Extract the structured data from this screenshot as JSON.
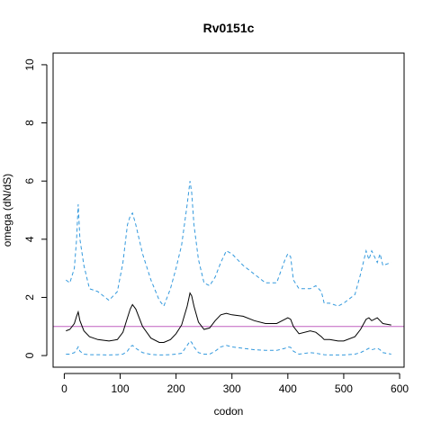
{
  "chart_data": {
    "type": "line",
    "title": "Rv0151c",
    "xlabel": "codon",
    "ylabel": "omega (dN/dS)",
    "xlim": [
      -20,
      608
    ],
    "ylim": [
      -0.4,
      10.4
    ],
    "xticks": [
      0,
      100,
      200,
      300,
      400,
      500,
      600
    ],
    "yticks": [
      0,
      2,
      4,
      6,
      8,
      10
    ],
    "xtick_labels": [
      "0",
      "100",
      "200",
      "300",
      "400",
      "500",
      "600"
    ],
    "ytick_labels": [
      "0",
      "2",
      "4",
      "6",
      "8",
      "10"
    ],
    "grid": false,
    "legend": "none",
    "reference_line": {
      "y": 1,
      "color": "#c060c0"
    },
    "series": [
      {
        "style": "dashed",
        "color": "#3399dd",
        "x": [
          3,
          10,
          18,
          22,
          25,
          28,
          35,
          45,
          60,
          80,
          95,
          105,
          113,
          118,
          122,
          128,
          140,
          155,
          170,
          178,
          190,
          200,
          210,
          220,
          225,
          228,
          232,
          240,
          250,
          260,
          270,
          280,
          290,
          300,
          320,
          340,
          360,
          380,
          395,
          400,
          405,
          410,
          420,
          440,
          450,
          460,
          465,
          475,
          490,
          500,
          520,
          530,
          540,
          545,
          550,
          560,
          565,
          570,
          585
        ],
        "values": [
          2.6,
          2.5,
          3.0,
          4.0,
          5.2,
          4.0,
          3.1,
          2.3,
          2.2,
          1.9,
          2.2,
          3.2,
          4.5,
          4.8,
          4.9,
          4.5,
          3.5,
          2.6,
          1.9,
          1.7,
          2.3,
          3.0,
          3.8,
          5.2,
          6.0,
          5.6,
          4.5,
          3.3,
          2.5,
          2.4,
          2.7,
          3.2,
          3.6,
          3.5,
          3.1,
          2.8,
          2.5,
          2.5,
          3.3,
          3.5,
          3.4,
          2.6,
          2.3,
          2.3,
          2.4,
          2.2,
          1.8,
          1.8,
          1.7,
          1.8,
          2.1,
          2.8,
          3.6,
          3.3,
          3.6,
          3.2,
          3.5,
          3.1,
          3.2
        ]
      },
      {
        "style": "solid",
        "color": "#000000",
        "x": [
          3,
          10,
          18,
          22,
          25,
          28,
          35,
          45,
          60,
          80,
          95,
          105,
          113,
          118,
          122,
          128,
          140,
          155,
          170,
          178,
          190,
          200,
          210,
          220,
          225,
          228,
          232,
          240,
          250,
          260,
          270,
          280,
          290,
          300,
          320,
          340,
          360,
          380,
          395,
          400,
          405,
          410,
          420,
          440,
          450,
          460,
          465,
          475,
          490,
          500,
          520,
          530,
          540,
          545,
          550,
          560,
          565,
          570,
          585
        ],
        "values": [
          0.85,
          0.9,
          1.1,
          1.35,
          1.5,
          1.2,
          0.85,
          0.65,
          0.55,
          0.5,
          0.55,
          0.8,
          1.3,
          1.6,
          1.75,
          1.6,
          1.0,
          0.6,
          0.45,
          0.45,
          0.55,
          0.75,
          1.05,
          1.7,
          2.15,
          2.05,
          1.7,
          1.15,
          0.9,
          0.95,
          1.2,
          1.4,
          1.45,
          1.4,
          1.35,
          1.2,
          1.1,
          1.1,
          1.25,
          1.3,
          1.25,
          1.0,
          0.75,
          0.85,
          0.8,
          0.65,
          0.55,
          0.55,
          0.5,
          0.5,
          0.65,
          0.9,
          1.25,
          1.3,
          1.2,
          1.3,
          1.2,
          1.1,
          1.05
        ]
      },
      {
        "style": "dashed",
        "color": "#3399dd",
        "x": [
          3,
          10,
          18,
          22,
          25,
          28,
          35,
          45,
          60,
          80,
          95,
          105,
          113,
          118,
          122,
          128,
          140,
          155,
          170,
          178,
          190,
          200,
          210,
          220,
          225,
          228,
          232,
          240,
          250,
          260,
          270,
          280,
          290,
          300,
          320,
          340,
          360,
          380,
          395,
          400,
          405,
          410,
          420,
          440,
          450,
          460,
          465,
          475,
          490,
          500,
          520,
          530,
          540,
          545,
          550,
          560,
          565,
          570,
          585
        ],
        "values": [
          0.05,
          0.05,
          0.1,
          0.2,
          0.3,
          0.15,
          0.05,
          0.03,
          0.03,
          0.02,
          0.03,
          0.05,
          0.15,
          0.3,
          0.35,
          0.25,
          0.1,
          0.04,
          0.02,
          0.02,
          0.03,
          0.05,
          0.08,
          0.35,
          0.5,
          0.45,
          0.3,
          0.1,
          0.05,
          0.05,
          0.15,
          0.3,
          0.35,
          0.3,
          0.25,
          0.2,
          0.18,
          0.18,
          0.25,
          0.3,
          0.28,
          0.15,
          0.05,
          0.1,
          0.08,
          0.05,
          0.03,
          0.02,
          0.02,
          0.02,
          0.05,
          0.1,
          0.2,
          0.25,
          0.2,
          0.25,
          0.2,
          0.1,
          0.05
        ]
      }
    ]
  }
}
